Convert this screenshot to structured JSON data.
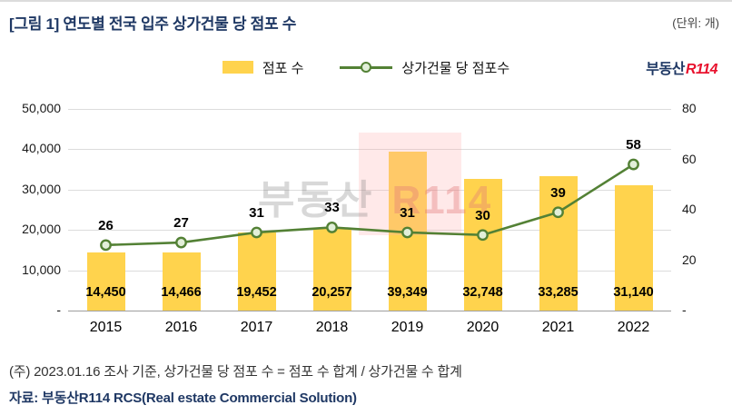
{
  "header": {
    "title": "[그림 1] 연도별 전국 입주 상가건물 당 점포 수",
    "unit_label": "(단위: 개)"
  },
  "logo": {
    "part1": "부동산",
    "part2": "R114"
  },
  "legend": {
    "bar_label": "점포 수",
    "line_label": "상가건물 당 점포수"
  },
  "watermark": {
    "part1": "부동산",
    "part2": "R114"
  },
  "colors": {
    "navy": "#1F3864",
    "red": "#E8112D",
    "bar_yellow": "#FFD34D",
    "line_green": "#538135",
    "marker_fill": "#E2EFD9",
    "gridline": "#DCDCDC",
    "axis_line": "#9E9E9E"
  },
  "footer": {
    "note": "(주) 2023.01.16 조사 기준, 상가건물 당 점포 수 = 점포 수 합계 / 상가건물 수 합계",
    "source": "자료: 부동산R114 RCS(Real estate Commercial Solution)"
  },
  "chart_data": {
    "type": "bar+line",
    "title": "연도별 전국 입주 상가건물 당 점포 수",
    "categories": [
      "2015",
      "2016",
      "2017",
      "2018",
      "2019",
      "2020",
      "2021",
      "2022"
    ],
    "series": [
      {
        "name": "점포 수",
        "type": "bar",
        "axis": "left",
        "color": "#FFD34D",
        "values": [
          14450,
          14466,
          19452,
          20257,
          39349,
          32748,
          33285,
          31140
        ]
      },
      {
        "name": "상가건물 당 점포수",
        "type": "line",
        "axis": "right",
        "color": "#538135",
        "values": [
          26,
          27,
          31,
          33,
          31,
          30,
          39,
          58
        ]
      }
    ],
    "left_axis": {
      "max": 50000,
      "ticks": [
        "50,000",
        "40,000",
        "30,000",
        "20,000",
        "10,000",
        "-"
      ]
    },
    "right_axis": {
      "max": 80,
      "ticks": [
        "80",
        "60",
        "40",
        "20",
        "-"
      ]
    },
    "bar_labels": [
      "14,450",
      "14,466",
      "19,452",
      "20,257",
      "39,349",
      "32,748",
      "33,285",
      "31,140"
    ],
    "line_labels": [
      "26",
      "27",
      "31",
      "33",
      "31",
      "30",
      "39",
      "58"
    ],
    "legend_position": "top",
    "grid": "horizontal"
  }
}
